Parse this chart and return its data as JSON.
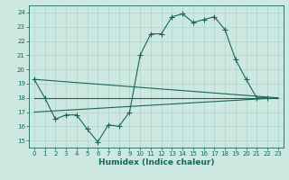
{
  "xlabel": "Humidex (Indice chaleur)",
  "bg_color": "#cce8e0",
  "grid_color": "#aad4cc",
  "line_color": "#1a6655",
  "xlim": [
    -0.5,
    23.5
  ],
  "ylim": [
    14.5,
    24.5
  ],
  "yticks": [
    15,
    16,
    17,
    18,
    19,
    20,
    21,
    22,
    23,
    24
  ],
  "xticks": [
    0,
    1,
    2,
    3,
    4,
    5,
    6,
    7,
    8,
    9,
    10,
    11,
    12,
    13,
    14,
    15,
    16,
    17,
    18,
    19,
    20,
    21,
    22,
    23
  ],
  "main_x": [
    0,
    1,
    2,
    3,
    4,
    5,
    6,
    7,
    8,
    9,
    10,
    11,
    12,
    13,
    14,
    15,
    16,
    17,
    18,
    19,
    20,
    21,
    22
  ],
  "main_y": [
    19.3,
    18.0,
    16.5,
    16.8,
    16.8,
    15.8,
    14.9,
    16.1,
    16.0,
    17.0,
    21.0,
    22.5,
    22.5,
    23.7,
    23.9,
    23.3,
    23.5,
    23.7,
    22.8,
    20.7,
    19.3,
    18.0,
    18.0
  ],
  "line1_x": [
    0,
    23
  ],
  "line1_y": [
    17.0,
    18.0
  ],
  "line2_x": [
    0,
    23
  ],
  "line2_y": [
    18.0,
    18.0
  ],
  "line3_x": [
    0,
    23
  ],
  "line3_y": [
    19.3,
    18.0
  ]
}
